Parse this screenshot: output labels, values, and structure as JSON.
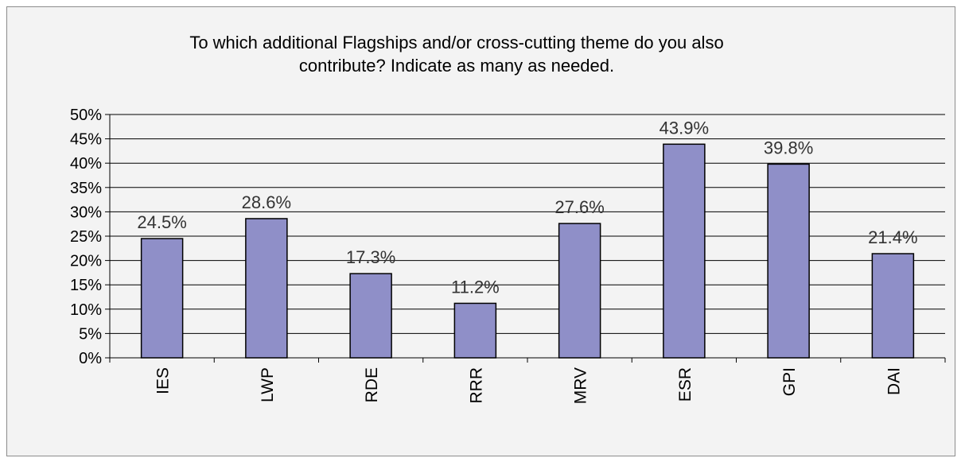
{
  "chart_data": {
    "type": "bar",
    "title_lines": [
      "To which additional Flagships and/or cross-cutting theme do you also",
      "contribute? Indicate as many as needed."
    ],
    "categories": [
      "IES",
      "LWP",
      "RDE",
      "RRR",
      "MRV",
      "ESR",
      "GPI",
      "DAI"
    ],
    "values": [
      24.5,
      28.6,
      17.3,
      11.2,
      27.6,
      43.9,
      39.8,
      21.4
    ],
    "data_labels": [
      "24.5%",
      "28.6%",
      "17.3%",
      "11.2%",
      "27.6%",
      "43.9%",
      "39.8%",
      "21.4%"
    ],
    "ylim": [
      0,
      50
    ],
    "y_ticks": [
      0,
      5,
      10,
      15,
      20,
      25,
      30,
      35,
      40,
      45,
      50
    ],
    "y_tick_labels": [
      "0%",
      "5%",
      "10%",
      "15%",
      "20%",
      "25%",
      "30%",
      "35%",
      "40%",
      "45%",
      "50%"
    ],
    "xlabel": "",
    "ylabel": "",
    "grid": true,
    "legend": "none",
    "colors": {
      "bar_fill": "#8f8fc8",
      "bar_stroke": "#000000",
      "gridline": "#000000",
      "background": "#f3f3f3"
    }
  }
}
